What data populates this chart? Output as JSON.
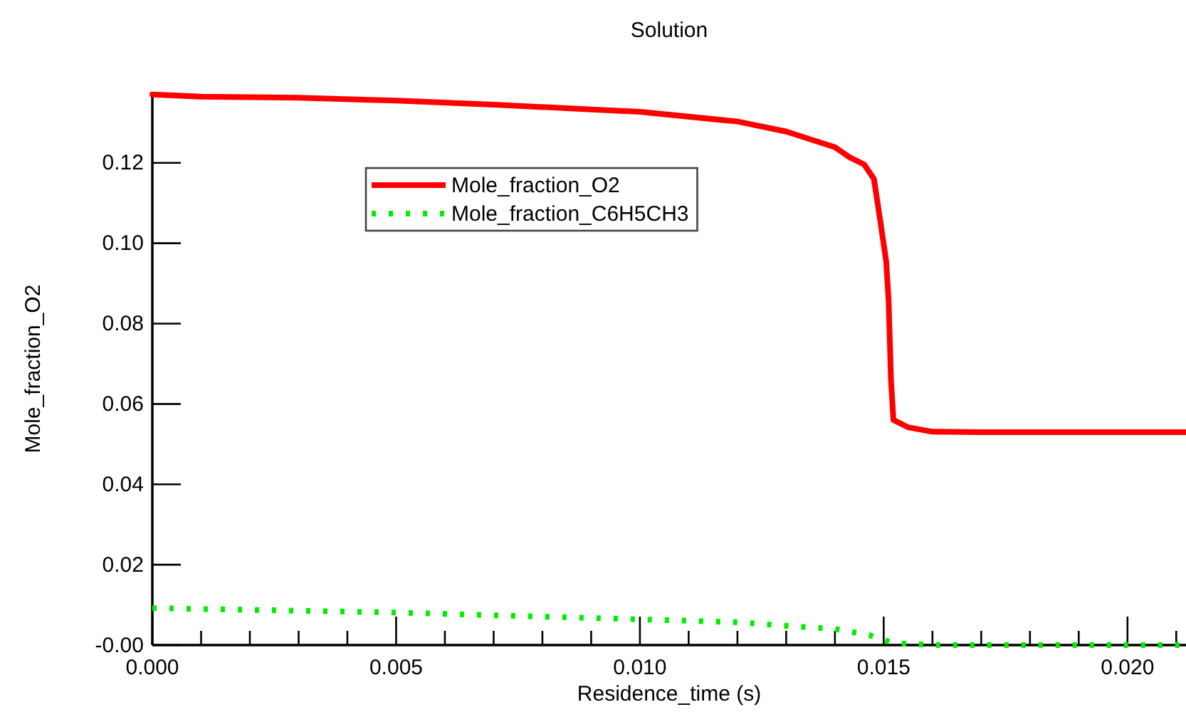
{
  "chart_data": {
    "type": "line",
    "title": "Solution",
    "xlabel": "Residence_time (s)",
    "ylabel": "Mole_fraction_O2",
    "xlim": [
      0,
      0.0212
    ],
    "ylim": [
      0,
      0.1375
    ],
    "xticks": [
      {
        "value": 0,
        "label": "0.000"
      },
      {
        "value": 0.001,
        "label": null
      },
      {
        "value": 0.002,
        "label": null
      },
      {
        "value": 0.003,
        "label": null
      },
      {
        "value": 0.004,
        "label": null
      },
      {
        "value": 0.005,
        "label": "0.005"
      },
      {
        "value": 0.006,
        "label": null
      },
      {
        "value": 0.007,
        "label": null
      },
      {
        "value": 0.008,
        "label": null
      },
      {
        "value": 0.009,
        "label": null
      },
      {
        "value": 0.01,
        "label": "0.010"
      },
      {
        "value": 0.011,
        "label": null
      },
      {
        "value": 0.012,
        "label": null
      },
      {
        "value": 0.013,
        "label": null
      },
      {
        "value": 0.014,
        "label": null
      },
      {
        "value": 0.015,
        "label": "0.015"
      },
      {
        "value": 0.016,
        "label": null
      },
      {
        "value": 0.017,
        "label": null
      },
      {
        "value": 0.018,
        "label": null
      },
      {
        "value": 0.019,
        "label": null
      },
      {
        "value": 0.02,
        "label": "0.020"
      },
      {
        "value": 0.021,
        "label": null
      }
    ],
    "yticks": [
      {
        "value": 0,
        "label": "-0.00"
      },
      {
        "value": 0.02,
        "label": "0.02"
      },
      {
        "value": 0.04,
        "label": "0.04"
      },
      {
        "value": 0.06,
        "label": "0.06"
      },
      {
        "value": 0.08,
        "label": "0.08"
      },
      {
        "value": 0.1,
        "label": "0.10"
      },
      {
        "value": 0.12,
        "label": "0.12"
      }
    ],
    "legend": "top left",
    "grid": false,
    "series": [
      {
        "name": "Mole_fraction_O2",
        "color": "#ff0000",
        "line_style": "solid",
        "x": [
          0,
          0.001,
          0.003,
          0.005,
          0.007,
          0.009,
          0.01,
          0.012,
          0.013,
          0.014,
          0.0143,
          0.0146,
          0.0148,
          0.0149,
          0.01505,
          0.0151,
          0.01515,
          0.0152,
          0.0155,
          0.016,
          0.017,
          0.0212
        ],
        "values": [
          0.137,
          0.1365,
          0.1362,
          0.1355,
          0.1345,
          0.1333,
          0.1327,
          0.1303,
          0.1278,
          0.1239,
          0.1214,
          0.1196,
          0.116,
          0.108,
          0.0956,
          0.086,
          0.0658,
          0.056,
          0.0542,
          0.0531,
          0.053,
          0.053
        ]
      },
      {
        "name": "Mole_fraction_C6H5CH3",
        "color": "#00ee00",
        "line_style": "dotted",
        "x": [
          0,
          0.005,
          0.01,
          0.012,
          0.013,
          0.014,
          0.0147,
          0.0152,
          0.016,
          0.0212
        ],
        "values": [
          0.0092,
          0.0081,
          0.0064,
          0.0057,
          0.0048,
          0.004,
          0.0025,
          0.0005,
          0,
          0
        ]
      }
    ]
  }
}
